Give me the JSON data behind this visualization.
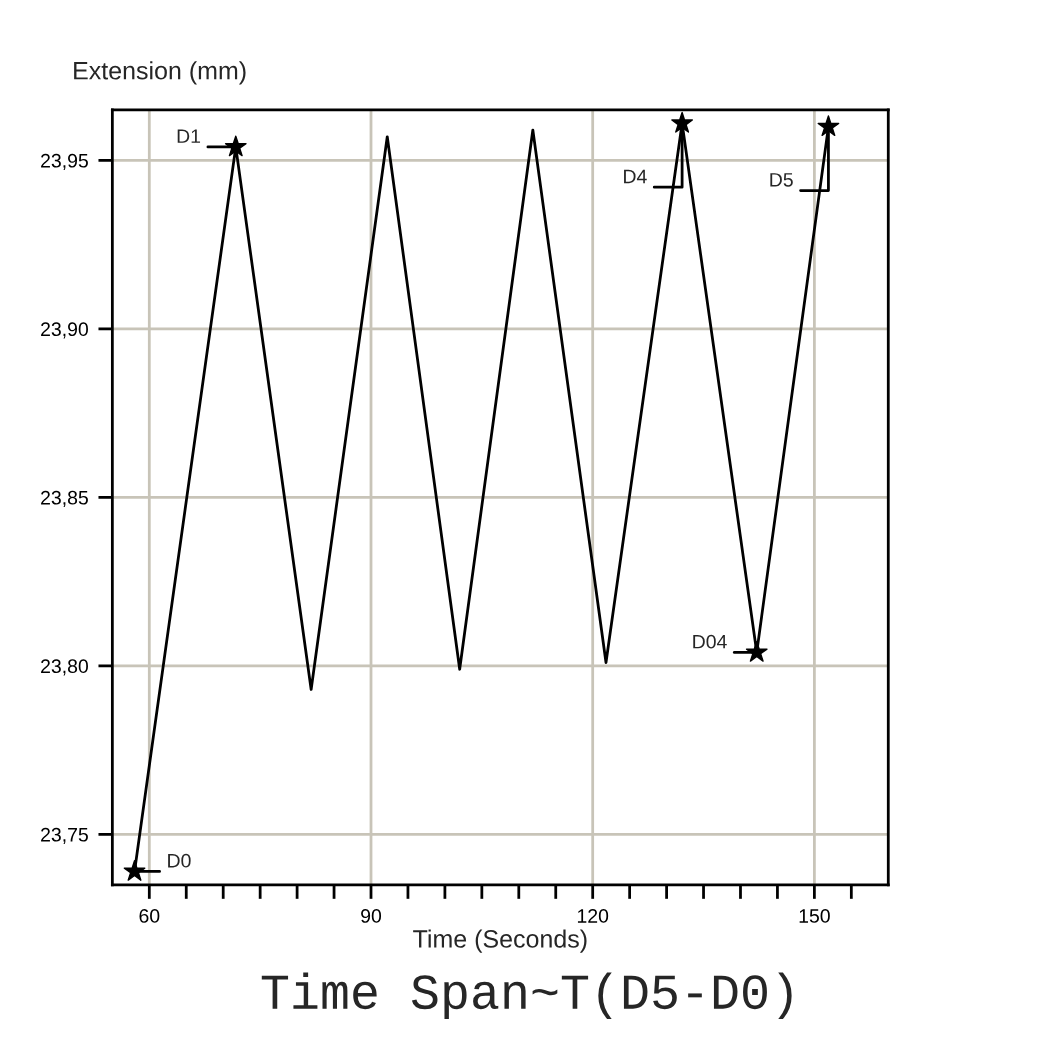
{
  "chart_data": {
    "type": "line",
    "ylabel": "Extension (mm)",
    "xlabel": "Time (Seconds)",
    "series": [
      {
        "type": "line",
        "color": "#000000",
        "marker": "none",
        "x": [
          58.0,
          71.7,
          81.9,
          92.2,
          102.0,
          111.9,
          121.8,
          132.1,
          142.2,
          151.9
        ],
        "values": [
          23.739,
          23.954,
          23.793,
          23.957,
          23.799,
          23.959,
          23.801,
          23.961,
          23.804,
          23.96
        ]
      },
      {
        "type": "scatter",
        "color": "#000000",
        "marker": "star",
        "x": [
          58.0,
          71.7,
          132.1,
          142.2,
          151.9
        ],
        "values": [
          23.739,
          23.954,
          23.961,
          23.804,
          23.96
        ]
      }
    ],
    "xlim": [
      55,
      160
    ],
    "ylim": [
      23.735,
      23.965
    ],
    "xticks": [
      60,
      {
        "value": 65,
        "label": null
      },
      {
        "value": 70,
        "label": null
      },
      {
        "value": 75,
        "label": null
      },
      {
        "value": 80,
        "label": null
      },
      {
        "value": 85,
        "label": null
      },
      90,
      {
        "value": 95,
        "label": null
      },
      {
        "value": 100,
        "label": null
      },
      {
        "value": 105,
        "label": null
      },
      {
        "value": 110,
        "label": null
      },
      {
        "value": 115,
        "label": null
      },
      120,
      {
        "value": 125,
        "label": null
      },
      {
        "value": 130,
        "label": null
      },
      {
        "value": 135,
        "label": null
      },
      {
        "value": 140,
        "label": null
      },
      {
        "value": 145,
        "label": null
      },
      150,
      {
        "value": 155,
        "label": null
      }
    ],
    "yticks": [
      {
        "value": 23.75,
        "label": "23,75"
      },
      {
        "value": 23.8,
        "label": "23,80"
      },
      {
        "value": 23.85,
        "label": "23,85"
      },
      {
        "value": 23.9,
        "label": "23,90"
      },
      {
        "value": 23.95,
        "label": "23,95"
      }
    ],
    "grid": true,
    "annotations": [
      {
        "text": "D0",
        "x": 58.0,
        "y": 23.739
      },
      {
        "text": "D1",
        "x": 71.7,
        "y": 23.954
      },
      {
        "text": "D4",
        "x": 132.1,
        "y": 23.961
      },
      {
        "text": "D04",
        "x": 142.2,
        "y": 23.804
      },
      {
        "text": "D5",
        "x": 151.9,
        "y": 23.96
      },
      "Time Span~T(D5-D0)"
    ]
  }
}
